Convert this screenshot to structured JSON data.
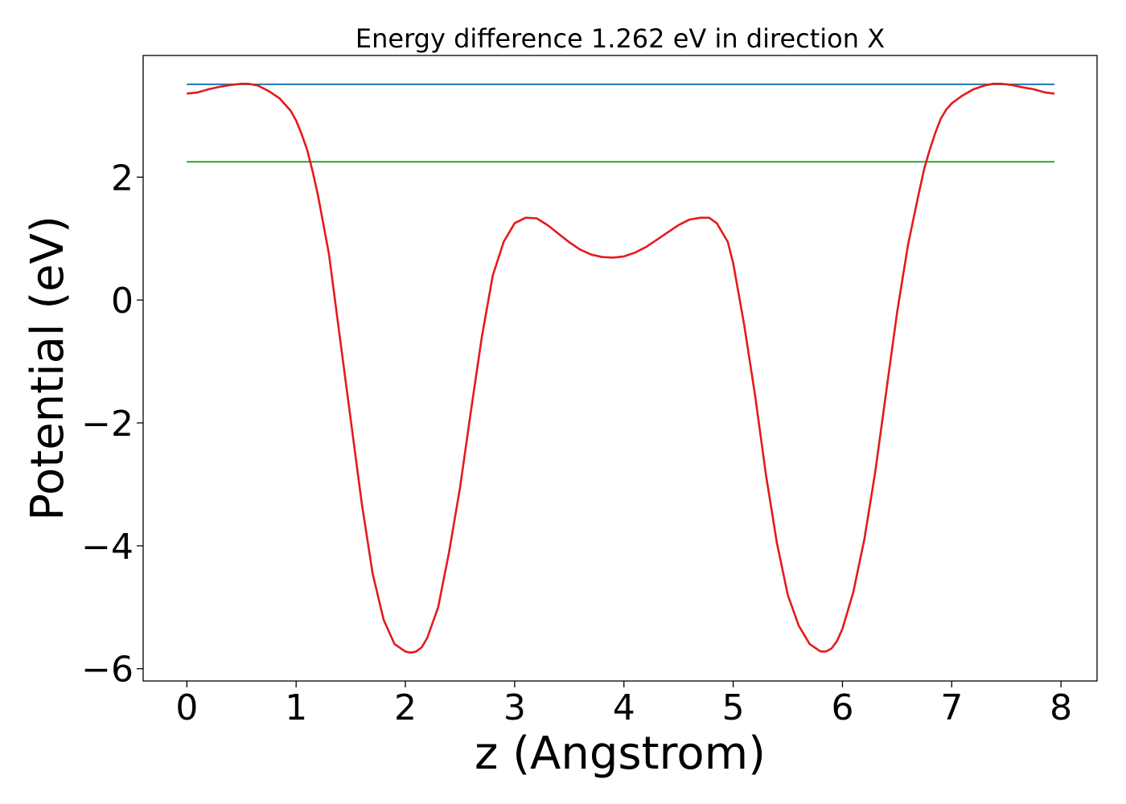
{
  "chart_data": {
    "type": "line",
    "title": "Energy difference 1.262 eV in direction X",
    "xlabel": "z (Angstrom)",
    "ylabel": "Potential (eV)",
    "xlim": [
      -0.4,
      8.33
    ],
    "ylim": [
      -6.2,
      3.98
    ],
    "x_ticks": [
      0,
      1,
      2,
      3,
      4,
      5,
      6,
      7,
      8
    ],
    "x_tick_labels": [
      "0",
      "1",
      "2",
      "3",
      "4",
      "5",
      "6",
      "7",
      "8"
    ],
    "y_ticks": [
      -6,
      -4,
      -2,
      0,
      2
    ],
    "y_tick_labels": [
      "−6",
      "−4",
      "−2",
      "0",
      "2"
    ],
    "grid": false,
    "legend": "none",
    "series": [
      {
        "color": "#1f77b4",
        "x": [
          0,
          7.94
        ],
        "y": [
          3.51,
          3.51
        ]
      },
      {
        "color": "#2ca02c",
        "x": [
          0,
          7.94
        ],
        "y": [
          2.25,
          2.25
        ]
      },
      {
        "color": "#e41a1c",
        "x": [
          0,
          0.1,
          0.2,
          0.3,
          0.4,
          0.5,
          0.56,
          0.65,
          0.75,
          0.85,
          0.95,
          1.0,
          1.05,
          1.1,
          1.15,
          1.2,
          1.3,
          1.4,
          1.5,
          1.6,
          1.7,
          1.8,
          1.9,
          2.0,
          2.05,
          2.1,
          2.15,
          2.2,
          2.3,
          2.4,
          2.5,
          2.6,
          2.7,
          2.8,
          2.9,
          3.0,
          3.1,
          3.2,
          3.3,
          3.4,
          3.5,
          3.6,
          3.7,
          3.8,
          3.9,
          4.0,
          4.1,
          4.2,
          4.3,
          4.4,
          4.5,
          4.6,
          4.7,
          4.78,
          4.85,
          4.95,
          5.0,
          5.1,
          5.2,
          5.3,
          5.4,
          5.5,
          5.6,
          5.7,
          5.8,
          5.85,
          5.9,
          5.95,
          6.0,
          6.1,
          6.2,
          6.3,
          6.4,
          6.5,
          6.6,
          6.7,
          6.75,
          6.8,
          6.85,
          6.9,
          6.95,
          7.0,
          7.1,
          7.2,
          7.3,
          7.38,
          7.45,
          7.55,
          7.65,
          7.75,
          7.85,
          7.94
        ],
        "y": [
          3.36,
          3.38,
          3.43,
          3.47,
          3.5,
          3.52,
          3.52,
          3.49,
          3.4,
          3.28,
          3.08,
          2.92,
          2.7,
          2.45,
          2.1,
          1.7,
          0.75,
          -0.6,
          -1.95,
          -3.3,
          -4.45,
          -5.2,
          -5.6,
          -5.72,
          -5.74,
          -5.72,
          -5.65,
          -5.5,
          -5.0,
          -4.1,
          -3.05,
          -1.8,
          -0.6,
          0.4,
          0.95,
          1.25,
          1.34,
          1.33,
          1.22,
          1.08,
          0.94,
          0.82,
          0.74,
          0.7,
          0.69,
          0.71,
          0.77,
          0.86,
          0.98,
          1.1,
          1.22,
          1.31,
          1.34,
          1.34,
          1.25,
          0.95,
          0.6,
          -0.4,
          -1.55,
          -2.85,
          -3.95,
          -4.8,
          -5.3,
          -5.6,
          -5.72,
          -5.72,
          -5.67,
          -5.55,
          -5.35,
          -4.75,
          -3.9,
          -2.8,
          -1.5,
          -0.2,
          0.9,
          1.75,
          2.15,
          2.45,
          2.72,
          2.95,
          3.1,
          3.2,
          3.33,
          3.43,
          3.49,
          3.52,
          3.52,
          3.5,
          3.46,
          3.43,
          3.38,
          3.36
        ]
      }
    ]
  }
}
